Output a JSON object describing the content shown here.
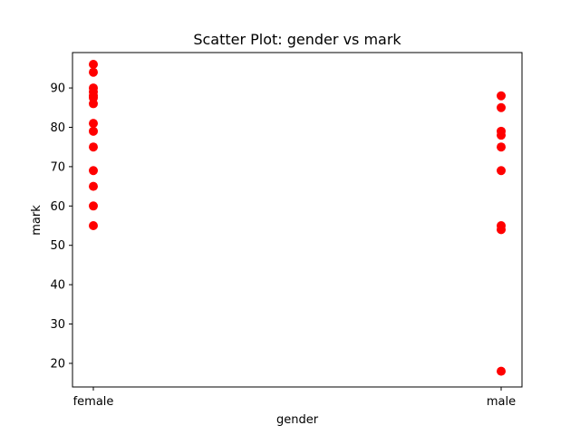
{
  "chart_data": {
    "type": "scatter",
    "title": "Scatter Plot: gender vs mark",
    "xlabel": "gender",
    "ylabel": "mark",
    "categories": [
      "female",
      "male"
    ],
    "ylim": [
      14,
      99
    ],
    "yticks": [
      20,
      30,
      40,
      50,
      60,
      70,
      80,
      90
    ],
    "grid": false,
    "marker_color": "#ff0000",
    "series": [
      {
        "points": [
          {
            "x": "female",
            "y": 96
          },
          {
            "x": "female",
            "y": 94
          },
          {
            "x": "female",
            "y": 90
          },
          {
            "x": "female",
            "y": 89
          },
          {
            "x": "female",
            "y": 88
          },
          {
            "x": "female",
            "y": 87.5
          },
          {
            "x": "female",
            "y": 86
          },
          {
            "x": "female",
            "y": 81
          },
          {
            "x": "female",
            "y": 79
          },
          {
            "x": "female",
            "y": 75
          },
          {
            "x": "female",
            "y": 69
          },
          {
            "x": "female",
            "y": 65
          },
          {
            "x": "female",
            "y": 60
          },
          {
            "x": "female",
            "y": 55
          },
          {
            "x": "male",
            "y": 88
          },
          {
            "x": "male",
            "y": 85
          },
          {
            "x": "male",
            "y": 79
          },
          {
            "x": "male",
            "y": 78
          },
          {
            "x": "male",
            "y": 75
          },
          {
            "x": "male",
            "y": 69
          },
          {
            "x": "male",
            "y": 55
          },
          {
            "x": "male",
            "y": 54
          },
          {
            "x": "male",
            "y": 18
          }
        ]
      }
    ]
  }
}
